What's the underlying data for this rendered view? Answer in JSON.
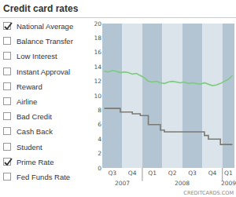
{
  "chart_data": {
    "type": "line",
    "title": "Credit card rates",
    "categories": [
      null,
      null,
      "Q3",
      null,
      null,
      null,
      null,
      "Q4",
      null,
      null,
      null,
      null,
      "Q1",
      null,
      null,
      null,
      null,
      "Q2",
      null,
      null,
      null,
      null,
      "Q3",
      null,
      null,
      null,
      null,
      "Q4",
      null,
      null,
      null,
      "Q1",
      null
    ],
    "x_groups": [
      {
        "label": "2007",
        "quarters": 2
      },
      {
        "label": "2008",
        "quarters": 4
      },
      {
        "label": "2009",
        "quarters": 1
      }
    ],
    "series": [
      {
        "name": "National Average",
        "color": "#7dcb7d",
        "line_style": "solid",
        "values": [
          13.4,
          13.3,
          13.5,
          13.4,
          13.2,
          13.3,
          13.2,
          13.0,
          13.1,
          12.8,
          12.5,
          12.0,
          11.9,
          12.0,
          11.8,
          11.7,
          11.9,
          12.0,
          11.9,
          11.8,
          11.9,
          11.7,
          11.8,
          11.7,
          11.6,
          11.8,
          11.6,
          11.4,
          11.5,
          11.7,
          12.0,
          12.3,
          12.8
        ]
      },
      {
        "name": "Prime Rate",
        "color": "#7b7a74",
        "line_style": "step",
        "values": [
          8.25,
          8.25,
          8.25,
          8.25,
          7.75,
          7.75,
          7.75,
          7.5,
          7.5,
          7.25,
          7.25,
          6.0,
          6.0,
          6.0,
          5.25,
          5.0,
          5.0,
          5.0,
          5.0,
          5.0,
          5.0,
          5.0,
          5.0,
          5.0,
          5.0,
          4.5,
          4.0,
          4.0,
          4.0,
          3.25,
          3.25,
          3.25,
          3.25
        ]
      }
    ],
    "ylim": [
      0,
      20
    ],
    "yticks": [
      0,
      2,
      4,
      6,
      8,
      10,
      12,
      14,
      16,
      18,
      20
    ],
    "grid": false
  },
  "sidebar": {
    "options": [
      {
        "label": "National Average",
        "checked": true
      },
      {
        "label": "Balance Transfer",
        "checked": false
      },
      {
        "label": "Low Interest",
        "checked": false
      },
      {
        "label": "Instant Approval",
        "checked": false
      },
      {
        "label": "Reward",
        "checked": false
      },
      {
        "label": "Airline",
        "checked": false
      },
      {
        "label": "Bad Credit",
        "checked": false
      },
      {
        "label": "Cash Back",
        "checked": false
      },
      {
        "label": "Student",
        "checked": false
      },
      {
        "label": "Prime Rate",
        "checked": true
      },
      {
        "label": "Fed Funds Rate",
        "checked": false
      }
    ]
  },
  "credit": "CREDITCARDS.COM"
}
